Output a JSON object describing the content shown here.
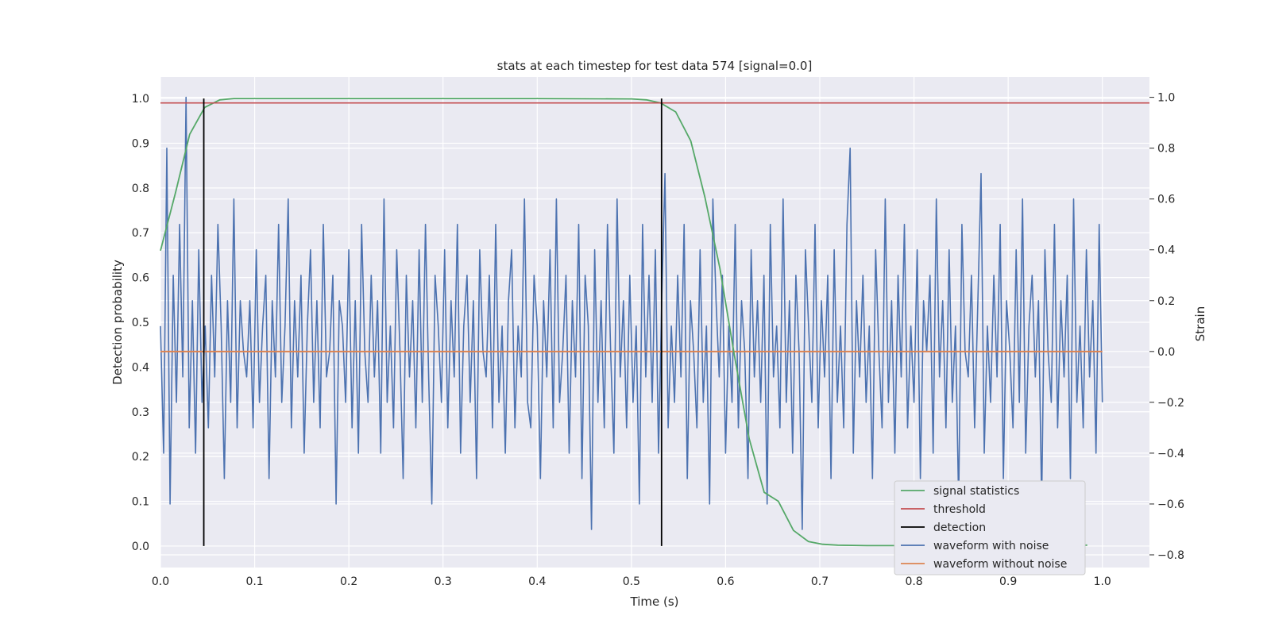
{
  "chart_data": {
    "type": "line",
    "title": "stats at each timestep for test data 574 [signal=0.0]",
    "xlabel": "Time (s)",
    "ylabel": "Detection probability",
    "ylabel_right": "Strain",
    "xlim": [
      0.0,
      1.05
    ],
    "ylim": [
      -0.048,
      1.048
    ],
    "ylim_right": [
      -0.85,
      1.08
    ],
    "x_ticks": [
      0.0,
      0.1,
      0.2,
      0.3,
      0.4,
      0.5,
      0.6,
      0.7,
      0.8,
      0.9,
      1.0
    ],
    "x_tick_labels": [
      "0.0",
      "0.1",
      "0.2",
      "0.3",
      "0.4",
      "0.5",
      "0.6",
      "0.7",
      "0.8",
      "0.9",
      "1.0"
    ],
    "y_ticks": [
      0.0,
      0.1,
      0.2,
      0.3,
      0.4,
      0.5,
      0.6,
      0.7,
      0.8,
      0.9,
      1.0
    ],
    "y_tick_labels": [
      "0.0",
      "0.1",
      "0.2",
      "0.3",
      "0.4",
      "0.5",
      "0.6",
      "0.7",
      "0.8",
      "0.9",
      "1.0"
    ],
    "y_right_ticks": [
      -0.8,
      -0.6,
      -0.4,
      -0.2,
      0.0,
      0.2,
      0.4,
      0.6,
      0.8,
      1.0
    ],
    "y_right_tick_labels": [
      "−0.8",
      "−0.6",
      "−0.4",
      "−0.2",
      "0.0",
      "0.2",
      "0.4",
      "0.6",
      "0.8",
      "1.0"
    ],
    "grid": true,
    "legend_position": "lower-right",
    "series": [
      {
        "name": "signal statistics",
        "color": "#55a868",
        "axis": "left",
        "x": [
          0.0,
          0.016,
          0.031,
          0.047,
          0.063,
          0.078,
          0.094,
          0.2,
          0.3,
          0.4,
          0.5,
          0.516,
          0.531,
          0.547,
          0.563,
          0.578,
          0.594,
          0.609,
          0.625,
          0.641,
          0.656,
          0.672,
          0.688,
          0.703,
          0.719,
          0.75,
          0.8,
          0.85,
          0.9,
          0.95,
          0.984
        ],
        "values": [
          0.66,
          0.79,
          0.92,
          0.98,
          0.997,
          1.0,
          1.0,
          1.0,
          1.0,
          1.0,
          0.999,
          0.997,
          0.99,
          0.97,
          0.905,
          0.78,
          0.62,
          0.43,
          0.24,
          0.12,
          0.1,
          0.035,
          0.01,
          0.004,
          0.002,
          0.001,
          0.001,
          0.001,
          0.001,
          0.001,
          0.002
        ]
      },
      {
        "name": "threshold",
        "color": "#c44e52",
        "axis": "left",
        "x": [
          0.0,
          1.05
        ],
        "values": [
          0.99,
          0.99
        ]
      },
      {
        "name": "detection",
        "color": "#000000",
        "axis": "left",
        "vlines": [
          0.046,
          0.532
        ],
        "vline_range": [
          0.0,
          1.0
        ]
      },
      {
        "name": "waveform with noise",
        "color": "#4c72b0",
        "axis": "right",
        "x_start": 0.0,
        "x_end": 1.0,
        "values": [
          0.1,
          -0.4,
          0.8,
          -0.6,
          0.3,
          -0.2,
          0.5,
          -0.1,
          1.0,
          -0.3,
          0.2,
          -0.4,
          0.4,
          -0.2,
          0.1,
          -0.3,
          0.3,
          -0.1,
          0.5,
          0.1,
          -0.5,
          0.2,
          -0.2,
          0.6,
          -0.3,
          0.2,
          0.0,
          -0.1,
          0.2,
          -0.3,
          0.4,
          -0.2,
          0.1,
          0.3,
          -0.5,
          0.2,
          -0.1,
          0.5,
          -0.2,
          0.1,
          0.6,
          -0.3,
          0.2,
          -0.1,
          0.3,
          -0.4,
          0.1,
          0.4,
          -0.2,
          0.2,
          -0.3,
          0.5,
          -0.1,
          0.0,
          0.3,
          -0.6,
          0.2,
          0.1,
          -0.2,
          0.4,
          -0.3,
          0.2,
          -0.4,
          0.5,
          0.0,
          -0.2,
          0.3,
          -0.1,
          0.2,
          -0.4,
          0.6,
          -0.2,
          0.1,
          -0.3,
          0.4,
          0.0,
          -0.5,
          0.3,
          -0.1,
          0.2,
          -0.3,
          0.4,
          -0.2,
          0.5,
          -0.1,
          -0.6,
          0.3,
          0.1,
          -0.2,
          0.4,
          -0.3,
          0.2,
          -0.1,
          0.5,
          -0.4,
          0.1,
          0.3,
          -0.2,
          0.2,
          -0.5,
          0.4,
          0.0,
          -0.1,
          0.3,
          -0.3,
          0.5,
          -0.2,
          0.1,
          -0.4,
          0.2,
          0.4,
          -0.3,
          0.1,
          -0.1,
          0.6,
          -0.2,
          -0.3,
          0.3,
          0.1,
          -0.5,
          0.2,
          -0.1,
          0.4,
          -0.3,
          0.6,
          -0.2,
          0.0,
          0.3,
          -0.4,
          0.2,
          -0.1,
          0.5,
          -0.5,
          0.3,
          0.1,
          -0.7,
          0.4,
          -0.2,
          0.2,
          -0.3,
          0.5,
          0.0,
          -0.4,
          0.6,
          -0.1,
          0.2,
          -0.3,
          0.3,
          -0.2,
          0.1,
          -0.6,
          0.5,
          -0.1,
          0.3,
          -0.2,
          0.4,
          -0.4,
          0.2,
          0.7,
          -0.3,
          0.1,
          -0.2,
          0.3,
          -0.1,
          0.5,
          -0.5,
          0.2,
          0.0,
          -0.3,
          0.4,
          -0.2,
          0.1,
          -0.6,
          0.6,
          0.2,
          -0.1,
          0.3,
          -0.4,
          0.1,
          -0.2,
          0.5,
          -0.3,
          0.2,
          0.0,
          -0.5,
          0.4,
          -0.1,
          0.2,
          -0.2,
          0.3,
          -0.6,
          0.5,
          -0.1,
          0.1,
          -0.3,
          0.6,
          -0.2,
          0.2,
          -0.4,
          0.3,
          0.0,
          -0.7,
          0.4,
          0.1,
          -0.2,
          0.5,
          -0.3,
          0.2,
          -0.1,
          0.3,
          -0.5,
          0.4,
          -0.2,
          0.1,
          -0.3,
          0.5,
          0.8,
          -0.4,
          0.2,
          -0.1,
          0.3,
          -0.2,
          0.1,
          -0.5,
          0.4,
          0.0,
          -0.3,
          0.6,
          -0.2,
          0.2,
          -0.4,
          0.3,
          -0.1,
          0.5,
          -0.3,
          0.1,
          -0.2,
          0.4,
          -0.5,
          0.2,
          0.0,
          0.3,
          -0.4,
          0.6,
          -0.1,
          0.2,
          -0.3,
          0.4,
          -0.2,
          0.1,
          -0.6,
          0.5,
          0.0,
          -0.1,
          0.3,
          -0.3,
          0.2,
          0.7,
          -0.4,
          0.1,
          -0.2,
          0.3,
          -0.1,
          0.5,
          -0.5,
          0.2,
          0.0,
          -0.3,
          0.4,
          -0.2,
          0.6,
          -0.4,
          0.1,
          0.3,
          -0.1,
          0.2,
          -0.6,
          0.4,
          0.0,
          -0.2,
          0.5,
          -0.3,
          0.2,
          -0.1,
          0.3,
          -0.5,
          0.6,
          -0.2,
          0.1,
          -0.3,
          0.4,
          -0.1,
          0.2,
          -0.4,
          0.5,
          -0.2
        ]
      },
      {
        "name": "waveform without noise",
        "color": "#dd8452",
        "axis": "right",
        "x": [
          0.0,
          1.0
        ],
        "values": [
          0.0,
          0.0
        ]
      }
    ]
  }
}
